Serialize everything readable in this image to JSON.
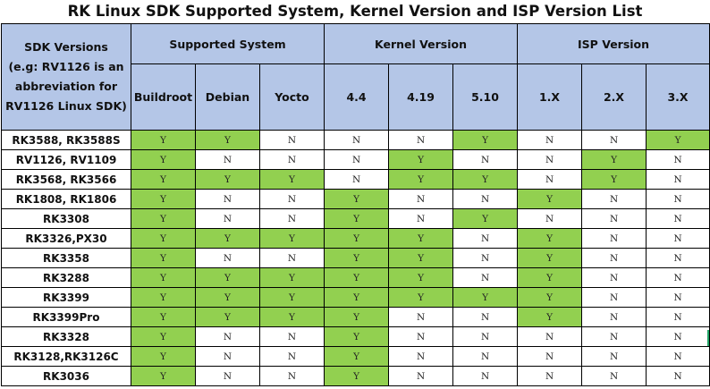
{
  "title": "RK Linux SDK Supported System, Kernel Version and ISP Version List",
  "colors": {
    "header_fill": "#b4c6e7",
    "supported_fill": "#92d050",
    "grid_line": "#000000"
  },
  "table": {
    "corner_label_lines": [
      "SDK Versions",
      "(e.g: RV1126 is an",
      "abbreviation for",
      "RV1126 Linux SDK)"
    ],
    "groups": [
      {
        "label": "Supported System"
      },
      {
        "label": "Kernel Version"
      },
      {
        "label": "ISP Version"
      }
    ],
    "columns": [
      "Buildroot",
      "Debian",
      "Yocto",
      "4.4",
      "4.19",
      "5.10",
      "1.X",
      "2.X",
      "3.X"
    ],
    "rows": [
      {
        "name": "RK3588, RK3588S",
        "cells": [
          "Y",
          "Y",
          "N",
          "N",
          "N",
          "Y",
          "N",
          "N",
          "Y"
        ]
      },
      {
        "name": "RV1126, RV1109",
        "cells": [
          "Y",
          "N",
          "N",
          "N",
          "Y",
          "N",
          "N",
          "Y",
          "N"
        ]
      },
      {
        "name": "RK3568, RK3566",
        "cells": [
          "Y",
          "Y",
          "Y",
          "N",
          "Y",
          "Y",
          "N",
          "Y",
          "N"
        ]
      },
      {
        "name": "RK1808, RK1806",
        "cells": [
          "Y",
          "N",
          "N",
          "Y",
          "N",
          "N",
          "Y",
          "N",
          "N"
        ]
      },
      {
        "name": "RK3308",
        "cells": [
          "Y",
          "N",
          "N",
          "Y",
          "N",
          "Y",
          "N",
          "N",
          "N"
        ]
      },
      {
        "name": "RK3326,PX30",
        "cells": [
          "Y",
          "Y",
          "Y",
          "Y",
          "Y",
          "N",
          "Y",
          "N",
          "N"
        ]
      },
      {
        "name": "RK3358",
        "cells": [
          "Y",
          "N",
          "N",
          "Y",
          "Y",
          "N",
          "Y",
          "N",
          "N"
        ]
      },
      {
        "name": "RK3288",
        "cells": [
          "Y",
          "Y",
          "Y",
          "Y",
          "Y",
          "N",
          "Y",
          "N",
          "N"
        ]
      },
      {
        "name": "RK3399",
        "cells": [
          "Y",
          "Y",
          "Y",
          "Y",
          "Y",
          "Y",
          "Y",
          "N",
          "N"
        ]
      },
      {
        "name": "RK3399Pro",
        "cells": [
          "Y",
          "Y",
          "Y",
          "Y",
          "N",
          "N",
          "Y",
          "N",
          "N"
        ]
      },
      {
        "name": "RK3328",
        "cells": [
          "Y",
          "N",
          "N",
          "Y",
          "N",
          "N",
          "N",
          "N",
          "N"
        ]
      },
      {
        "name": "RK3128,RK3126C",
        "cells": [
          "Y",
          "N",
          "N",
          "Y",
          "N",
          "N",
          "N",
          "N",
          "N"
        ]
      },
      {
        "name": "RK3036",
        "cells": [
          "Y",
          "N",
          "N",
          "Y",
          "N",
          "N",
          "N",
          "N",
          "N"
        ]
      }
    ]
  }
}
